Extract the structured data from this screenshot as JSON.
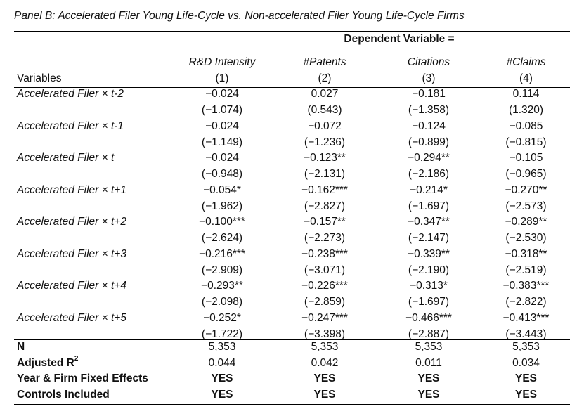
{
  "panel_title": "Panel B: Accelerated Filer Young Life-Cycle vs. Non-accelerated Filer Young Life-Cycle Firms",
  "dependent_variable_label": "Dependent Variable =",
  "variables_header": "Variables",
  "columns": [
    {
      "name": "R&D Intensity",
      "num": "(1)"
    },
    {
      "name": "#Patents",
      "num": "(2)"
    },
    {
      "name": "Citations",
      "num": "(3)"
    },
    {
      "name": "#Claims",
      "num": "(4)"
    }
  ],
  "rows": [
    {
      "label": "Accelerated Filer × t-2",
      "coef": [
        "−0.024",
        "0.027",
        "−0.181",
        "0.114"
      ],
      "tstat": [
        "(−1.074)",
        "(0.543)",
        "(−1.358)",
        "(1.320)"
      ]
    },
    {
      "label": "Accelerated Filer × t-1",
      "coef": [
        "−0.024",
        "−0.072",
        "−0.124",
        "−0.085"
      ],
      "tstat": [
        "(−1.149)",
        "(−1.236)",
        "(−0.899)",
        "(−0.815)"
      ]
    },
    {
      "label": "Accelerated Filer × t",
      "coef": [
        "−0.024",
        "−0.123**",
        "−0.294**",
        "−0.105"
      ],
      "tstat": [
        "(−0.948)",
        "(−2.131)",
        "(−2.186)",
        "(−0.965)"
      ]
    },
    {
      "label": "Accelerated Filer × t+1",
      "coef": [
        "−0.054*",
        "−0.162***",
        "−0.214*",
        "−0.270**"
      ],
      "tstat": [
        "(−1.962)",
        "(−2.827)",
        "(−1.697)",
        "(−2.573)"
      ]
    },
    {
      "label": "Accelerated Filer × t+2",
      "coef": [
        "−0.100***",
        "−0.157**",
        "−0.347**",
        "−0.289**"
      ],
      "tstat": [
        "(−2.624)",
        "(−2.273)",
        "(−2.147)",
        "(−2.530)"
      ]
    },
    {
      "label": "Accelerated Filer × t+3",
      "coef": [
        "−0.216***",
        "−0.238***",
        "−0.339**",
        "−0.318**"
      ],
      "tstat": [
        "(−2.909)",
        "(−3.071)",
        "(−2.190)",
        "(−2.519)"
      ]
    },
    {
      "label": "Accelerated Filer × t+4",
      "coef": [
        "−0.293**",
        "−0.226***",
        "−0.313*",
        "−0.383***"
      ],
      "tstat": [
        "(−2.098)",
        "(−2.859)",
        "(−1.697)",
        "(−2.822)"
      ]
    },
    {
      "label": "Accelerated Filer × t+5",
      "coef": [
        "−0.252*",
        "−0.247***",
        "−0.466***",
        "−0.413***"
      ],
      "tstat": [
        "(−1.722)",
        "(−3.398)",
        "(−2.887)",
        "(−3.443)"
      ]
    }
  ],
  "stats": [
    {
      "label": "N",
      "values": [
        "5,353",
        "5,353",
        "5,353",
        "5,353"
      ]
    },
    {
      "label": "Adjusted R",
      "sup": "2",
      "values": [
        "0.044",
        "0.042",
        "0.011",
        "0.034"
      ]
    },
    {
      "label": "Year & Firm Fixed Effects",
      "values": [
        "YES",
        "YES",
        "YES",
        "YES"
      ]
    },
    {
      "label": "Controls Included",
      "values": [
        "YES",
        "YES",
        "YES",
        "YES"
      ]
    }
  ]
}
